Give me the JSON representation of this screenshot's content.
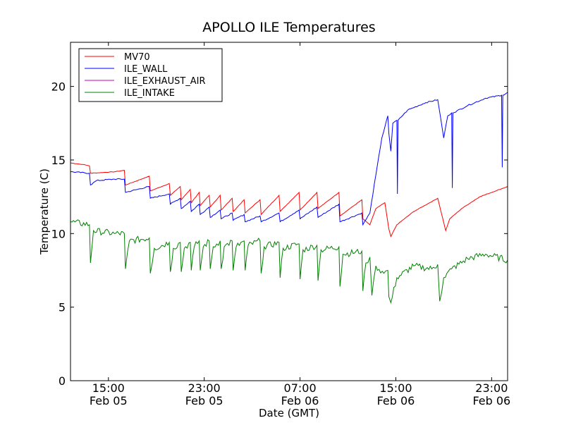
{
  "chart_data": {
    "type": "line",
    "title": "APOLLO ILE Temperatures",
    "xlabel": "Date (GMT)",
    "ylabel": "Temperature (C)",
    "xlim": [
      "2014-02-05 11:50",
      "2014-02-07 00:20"
    ],
    "ylim": [
      0,
      23
    ],
    "y_ticks": [
      0,
      5,
      10,
      15,
      20
    ],
    "x_ticks": [
      {
        "t": "2014-02-05 15:00",
        "time": "15:00",
        "date": "Feb 05"
      },
      {
        "t": "2014-02-05 23:00",
        "time": "23:00",
        "date": "Feb 05"
      },
      {
        "t": "2014-02-06 07:00",
        "time": "07:00",
        "date": "Feb 06"
      },
      {
        "t": "2014-02-06 15:00",
        "time": "15:00",
        "date": "Feb 06"
      },
      {
        "t": "2014-02-06 23:00",
        "time": "23:00",
        "date": "Feb 06"
      }
    ],
    "grid": false,
    "legend_position": "top-left",
    "series": [
      {
        "name": "MV70",
        "color": "#ff0000",
        "points": [
          [
            "2014-02-05 11:50",
            14.8
          ],
          [
            "2014-02-05 12:50",
            14.7
          ],
          [
            "2014-02-05 13:25",
            14.6
          ],
          [
            "2014-02-05 13:30",
            14.1
          ],
          [
            "2014-02-05 15:30",
            14.2
          ],
          [
            "2014-02-05 16:20",
            14.3
          ],
          [
            "2014-02-05 16:25",
            13.3
          ],
          [
            "2014-02-05 18:25",
            13.9
          ],
          [
            "2014-02-05 18:30",
            12.9
          ],
          [
            "2014-02-05 20:05",
            13.4
          ],
          [
            "2014-02-05 20:10",
            12.6
          ],
          [
            "2014-02-05 21:00",
            13.2
          ],
          [
            "2014-02-05 21:05",
            12.3
          ],
          [
            "2014-02-05 21:50",
            13.0
          ],
          [
            "2014-02-05 21:55",
            12.1
          ],
          [
            "2014-02-05 22:35",
            12.8
          ],
          [
            "2014-02-05 22:40",
            11.9
          ],
          [
            "2014-02-05 23:25",
            12.6
          ],
          [
            "2014-02-05 23:30",
            11.8
          ],
          [
            "2014-02-06 00:20",
            12.6
          ],
          [
            "2014-02-06 00:25",
            11.6
          ],
          [
            "2014-02-06 01:20",
            12.4
          ],
          [
            "2014-02-06 01:25",
            11.5
          ],
          [
            "2014-02-06 02:20",
            12.3
          ],
          [
            "2014-02-06 02:25",
            11.4
          ],
          [
            "2014-02-06 03:40",
            12.3
          ],
          [
            "2014-02-06 03:45",
            11.3
          ],
          [
            "2014-02-06 05:15",
            12.6
          ],
          [
            "2014-02-06 05:20",
            11.5
          ],
          [
            "2014-02-06 06:55",
            12.8
          ],
          [
            "2014-02-06 07:00",
            11.6
          ],
          [
            "2014-02-06 08:25",
            12.8
          ],
          [
            "2014-02-06 08:30",
            11.7
          ],
          [
            "2014-02-06 10:15",
            12.8
          ],
          [
            "2014-02-06 10:20",
            11.2
          ],
          [
            "2014-02-06 12:10",
            12.3
          ],
          [
            "2014-02-06 12:15",
            11.0
          ],
          [
            "2014-02-06 12:50",
            10.6
          ],
          [
            "2014-02-06 13:20",
            11.7
          ],
          [
            "2014-02-06 14:05",
            12.1
          ],
          [
            "2014-02-06 14:25",
            10.3
          ],
          [
            "2014-02-06 14:35",
            9.8
          ],
          [
            "2014-02-06 15:05",
            10.6
          ],
          [
            "2014-02-06 16:30",
            11.5
          ],
          [
            "2014-02-06 18:30",
            12.4
          ],
          [
            "2014-02-06 19:10",
            10.2
          ],
          [
            "2014-02-06 19:30",
            11.0
          ],
          [
            "2014-02-06 20:30",
            11.7
          ],
          [
            "2014-02-06 22:00",
            12.5
          ],
          [
            "2014-02-07 00:20",
            13.2
          ]
        ]
      },
      {
        "name": "ILE_WALL",
        "color": "#0000ff",
        "points": [
          [
            "2014-02-05 11:50",
            14.2
          ],
          [
            "2014-02-05 13:25",
            14.1
          ],
          [
            "2014-02-05 13:30",
            13.3
          ],
          [
            "2014-02-05 14:00",
            13.6
          ],
          [
            "2014-02-05 15:30",
            13.7
          ],
          [
            "2014-02-05 16:20",
            13.7
          ],
          [
            "2014-02-05 16:25",
            12.8
          ],
          [
            "2014-02-05 18:25",
            13.2
          ],
          [
            "2014-02-05 18:30",
            12.4
          ],
          [
            "2014-02-05 20:05",
            12.7
          ],
          [
            "2014-02-05 20:10",
            12.0
          ],
          [
            "2014-02-05 21:00",
            12.4
          ],
          [
            "2014-02-05 21:05",
            11.7
          ],
          [
            "2014-02-05 21:50",
            12.2
          ],
          [
            "2014-02-05 21:55",
            11.5
          ],
          [
            "2014-02-05 22:35",
            12.0
          ],
          [
            "2014-02-05 22:40",
            11.3
          ],
          [
            "2014-02-05 23:25",
            11.8
          ],
          [
            "2014-02-05 23:30",
            11.1
          ],
          [
            "2014-02-06 00:20",
            11.6
          ],
          [
            "2014-02-06 00:25",
            11.0
          ],
          [
            "2014-02-06 01:20",
            11.4
          ],
          [
            "2014-02-06 01:25",
            10.9
          ],
          [
            "2014-02-06 02:20",
            11.3
          ],
          [
            "2014-02-06 02:25",
            10.8
          ],
          [
            "2014-02-06 03:40",
            11.2
          ],
          [
            "2014-02-06 03:45",
            10.8
          ],
          [
            "2014-02-06 05:15",
            11.4
          ],
          [
            "2014-02-06 05:20",
            10.8
          ],
          [
            "2014-02-06 06:55",
            11.6
          ],
          [
            "2014-02-06 07:00",
            11.0
          ],
          [
            "2014-02-06 08:25",
            11.8
          ],
          [
            "2014-02-06 08:30",
            11.1
          ],
          [
            "2014-02-06 10:15",
            12.0
          ],
          [
            "2014-02-06 10:20",
            10.8
          ],
          [
            "2014-02-06 12:10",
            11.4
          ],
          [
            "2014-02-06 12:15",
            10.6
          ],
          [
            "2014-02-06 12:50",
            11.4
          ],
          [
            "2014-02-06 13:20",
            14.0
          ],
          [
            "2014-02-06 13:50",
            16.5
          ],
          [
            "2014-02-06 14:20",
            18.0
          ],
          [
            "2014-02-06 14:25",
            16.8
          ],
          [
            "2014-02-06 14:35",
            15.6
          ],
          [
            "2014-02-06 14:45",
            17.5
          ],
          [
            "2014-02-06 15:05",
            17.7
          ],
          [
            "2014-02-06 15:08",
            12.7
          ],
          [
            "2014-02-06 15:11",
            17.7
          ],
          [
            "2014-02-06 16:00",
            18.4
          ],
          [
            "2014-02-06 17:30",
            18.9
          ],
          [
            "2014-02-06 18:30",
            19.1
          ],
          [
            "2014-02-06 19:00",
            16.5
          ],
          [
            "2014-02-06 19:20",
            18.0
          ],
          [
            "2014-02-06 19:40",
            18.2
          ],
          [
            "2014-02-06 19:43",
            13.1
          ],
          [
            "2014-02-06 19:46",
            18.2
          ],
          [
            "2014-02-06 21:00",
            18.7
          ],
          [
            "2014-02-06 22:30",
            19.2
          ],
          [
            "2014-02-06 23:50",
            19.4
          ],
          [
            "2014-02-06 23:53",
            14.5
          ],
          [
            "2014-02-06 23:56",
            19.4
          ],
          [
            "2014-02-07 00:20",
            19.6
          ]
        ]
      },
      {
        "name": "ILE_EXHAUST_AIR",
        "color": "#bf00bf",
        "points": []
      },
      {
        "name": "ILE_INTAKE",
        "color": "#008000",
        "points": [
          [
            "2014-02-05 11:50",
            10.8
          ],
          [
            "2014-02-05 13:25",
            10.6
          ],
          [
            "2014-02-05 13:30",
            8.0
          ],
          [
            "2014-02-05 13:45",
            10.2
          ],
          [
            "2014-02-05 15:30",
            10.0
          ],
          [
            "2014-02-05 16:20",
            10.0
          ],
          [
            "2014-02-05 16:25",
            7.6
          ],
          [
            "2014-02-05 16:45",
            9.5
          ],
          [
            "2014-02-05 18:25",
            9.7
          ],
          [
            "2014-02-05 18:30",
            7.3
          ],
          [
            "2014-02-05 18:50",
            9.0
          ],
          [
            "2014-02-05 20:05",
            9.4
          ],
          [
            "2014-02-05 20:10",
            7.4
          ],
          [
            "2014-02-05 20:25",
            9.0
          ],
          [
            "2014-02-05 21:00",
            9.4
          ],
          [
            "2014-02-05 21:05",
            7.4
          ],
          [
            "2014-02-05 21:20",
            9.0
          ],
          [
            "2014-02-05 21:50",
            9.4
          ],
          [
            "2014-02-05 21:55",
            7.5
          ],
          [
            "2014-02-05 22:10",
            9.1
          ],
          [
            "2014-02-05 22:35",
            9.5
          ],
          [
            "2014-02-05 22:40",
            7.5
          ],
          [
            "2014-02-05 22:55",
            9.1
          ],
          [
            "2014-02-05 23:25",
            9.5
          ],
          [
            "2014-02-05 23:30",
            7.6
          ],
          [
            "2014-02-05 23:45",
            9.1
          ],
          [
            "2014-02-06 00:20",
            9.5
          ],
          [
            "2014-02-06 00:25",
            7.6
          ],
          [
            "2014-02-06 00:40",
            9.1
          ],
          [
            "2014-02-06 01:20",
            9.5
          ],
          [
            "2014-02-06 01:25",
            7.5
          ],
          [
            "2014-02-06 01:40",
            9.1
          ],
          [
            "2014-02-06 02:20",
            9.5
          ],
          [
            "2014-02-06 02:25",
            7.5
          ],
          [
            "2014-02-06 02:40",
            9.2
          ],
          [
            "2014-02-06 03:40",
            9.5
          ],
          [
            "2014-02-06 03:45",
            7.3
          ],
          [
            "2014-02-06 04:00",
            9.1
          ],
          [
            "2014-02-06 05:15",
            9.4
          ],
          [
            "2014-02-06 05:20",
            7.0
          ],
          [
            "2014-02-06 05:35",
            9.0
          ],
          [
            "2014-02-06 06:55",
            9.3
          ],
          [
            "2014-02-06 07:00",
            6.9
          ],
          [
            "2014-02-06 07:15",
            8.9
          ],
          [
            "2014-02-06 08:25",
            9.2
          ],
          [
            "2014-02-06 08:30",
            6.8
          ],
          [
            "2014-02-06 08:45",
            8.9
          ],
          [
            "2014-02-06 10:15",
            9.1
          ],
          [
            "2014-02-06 10:20",
            6.4
          ],
          [
            "2014-02-06 10:35",
            8.6
          ],
          [
            "2014-02-06 12:10",
            8.8
          ],
          [
            "2014-02-06 12:15",
            6.1
          ],
          [
            "2014-02-06 12:30",
            8.0
          ],
          [
            "2014-02-06 12:50",
            8.4
          ],
          [
            "2014-02-06 13:00",
            5.8
          ],
          [
            "2014-02-06 13:20",
            7.8
          ],
          [
            "2014-02-06 14:00",
            7.3
          ],
          [
            "2014-02-06 14:20",
            7.5
          ],
          [
            "2014-02-06 14:25",
            5.7
          ],
          [
            "2014-02-06 14:35",
            5.3
          ],
          [
            "2014-02-06 15:05",
            7.0
          ],
          [
            "2014-02-06 16:30",
            7.8
          ],
          [
            "2014-02-06 18:00",
            7.6
          ],
          [
            "2014-02-06 18:30",
            7.9
          ],
          [
            "2014-02-06 18:40",
            5.4
          ],
          [
            "2014-02-06 19:00",
            7.0
          ],
          [
            "2014-02-06 19:40",
            7.6
          ],
          [
            "2014-02-06 21:00",
            8.3
          ],
          [
            "2014-02-06 22:30",
            8.6
          ],
          [
            "2014-02-07 00:20",
            8.2
          ]
        ]
      }
    ]
  }
}
